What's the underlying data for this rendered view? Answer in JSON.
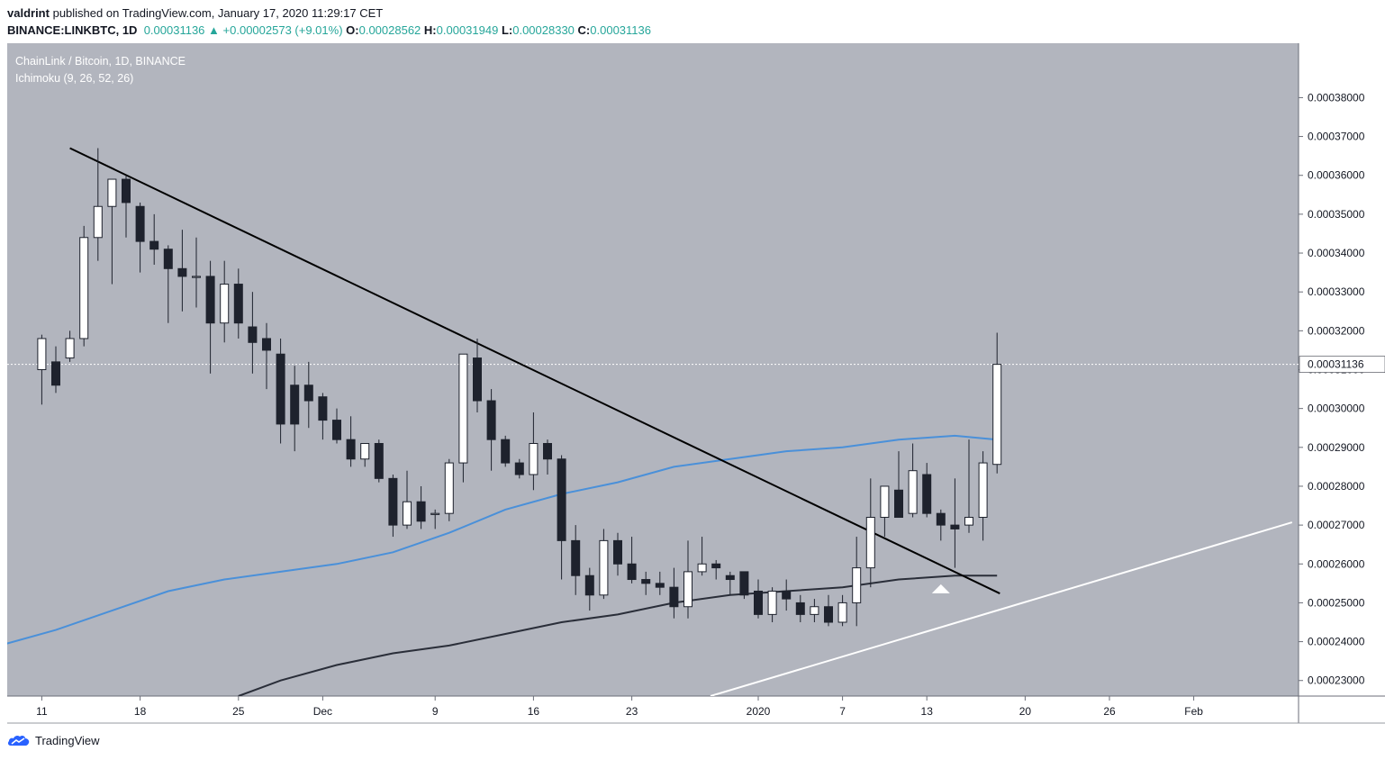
{
  "header": {
    "publisher": "valdrint",
    "published_text": "published on TradingView.com, January 17, 2020 11:29:17 CET",
    "symbol": "BINANCE:LINKBTC, 1D",
    "last": "0.00031136",
    "change": "+0.00002573 (+9.01%)",
    "o_label": "O:",
    "o_value": "0.00028562",
    "h_label": "H:",
    "h_value": "0.00031949",
    "l_label": "L:",
    "l_value": "0.00028330",
    "c_label": "C:",
    "c_value": "0.00031136"
  },
  "legend": {
    "title": "ChainLink / Bitcoin, 1D, BINANCE",
    "indicator": "Ichimoku (9, 26, 52, 26)"
  },
  "footer": {
    "brand": "TradingView"
  },
  "colors": {
    "pane_bg": "#b2b5be",
    "up_body": "#ffffff",
    "down_body": "#1e222d",
    "wick": "#1e222d",
    "blue_line": "#4a90d9",
    "dark_line": "#2a2e39",
    "trendline": "#000000",
    "support_line": "#ffffff",
    "price_tag_bg": "#ffffff"
  },
  "chart_data": {
    "type": "candlestick",
    "title": "ChainLink / Bitcoin, 1D, BINANCE",
    "ylim": [
      0.000226,
      0.000394
    ],
    "y_ticks": [
      "0.00023000",
      "0.00024000",
      "0.00025000",
      "0.00026000",
      "0.00027000",
      "0.00028000",
      "0.00029000",
      "0.00030000",
      "0.00031000",
      "0.00032000",
      "0.00033000",
      "0.00034000",
      "0.00035000",
      "0.00036000",
      "0.00037000",
      "0.00038000"
    ],
    "x_ticks": [
      {
        "label": "11",
        "day": -51
      },
      {
        "label": "18",
        "day": -44
      },
      {
        "label": "25",
        "day": -37
      },
      {
        "label": "Dec",
        "day": -31
      },
      {
        "label": "9",
        "day": -23
      },
      {
        "label": "16",
        "day": -16
      },
      {
        "label": "23",
        "day": -9
      },
      {
        "label": "2020",
        "day": 0
      },
      {
        "label": "7",
        "day": 6
      },
      {
        "label": "13",
        "day": 12
      },
      {
        "label": "20",
        "day": 19
      },
      {
        "label": "26",
        "day": 25
      },
      {
        "label": "Feb",
        "day": 31
      }
    ],
    "last_price_label": "0.00031136",
    "last_price": 0.00031136,
    "candles": [
      {
        "o": 0.00031,
        "h": 0.000319,
        "l": 0.000301,
        "c": 0.000318
      },
      {
        "o": 0.000312,
        "h": 0.000316,
        "l": 0.000304,
        "c": 0.000306
      },
      {
        "o": 0.000313,
        "h": 0.00032,
        "l": 0.000312,
        "c": 0.000318
      },
      {
        "o": 0.000318,
        "h": 0.000347,
        "l": 0.000316,
        "c": 0.000344
      },
      {
        "o": 0.000344,
        "h": 0.000367,
        "l": 0.000338,
        "c": 0.000352
      },
      {
        "o": 0.000352,
        "h": 0.000359,
        "l": 0.000332,
        "c": 0.000359
      },
      {
        "o": 0.000359,
        "h": 0.00036,
        "l": 0.000344,
        "c": 0.000353
      },
      {
        "o": 0.000352,
        "h": 0.000353,
        "l": 0.000335,
        "c": 0.000343
      },
      {
        "o": 0.000343,
        "h": 0.00035,
        "l": 0.000337,
        "c": 0.000341
      },
      {
        "o": 0.000341,
        "h": 0.000342,
        "l": 0.000322,
        "c": 0.000336
      },
      {
        "o": 0.000336,
        "h": 0.000346,
        "l": 0.000325,
        "c": 0.000334
      },
      {
        "o": 0.000334,
        "h": 0.000344,
        "l": 0.000326,
        "c": 0.000334
      },
      {
        "o": 0.000334,
        "h": 0.000338,
        "l": 0.000309,
        "c": 0.000322
      },
      {
        "o": 0.000322,
        "h": 0.000338,
        "l": 0.000317,
        "c": 0.000332
      },
      {
        "o": 0.000332,
        "h": 0.000336,
        "l": 0.000318,
        "c": 0.000322
      },
      {
        "o": 0.000321,
        "h": 0.00033,
        "l": 0.000309,
        "c": 0.000317
      },
      {
        "o": 0.000318,
        "h": 0.000322,
        "l": 0.000305,
        "c": 0.000315
      },
      {
        "o": 0.000314,
        "h": 0.000318,
        "l": 0.000291,
        "c": 0.000296
      },
      {
        "o": 0.000306,
        "h": 0.000311,
        "l": 0.000289,
        "c": 0.000296
      },
      {
        "o": 0.000306,
        "h": 0.000312,
        "l": 0.000295,
        "c": 0.000302
      },
      {
        "o": 0.000303,
        "h": 0.000304,
        "l": 0.000292,
        "c": 0.000297
      },
      {
        "o": 0.000297,
        "h": 0.0003,
        "l": 0.000291,
        "c": 0.000292
      },
      {
        "o": 0.000292,
        "h": 0.000298,
        "l": 0.000285,
        "c": 0.000287
      },
      {
        "o": 0.000287,
        "h": 0.000291,
        "l": 0.000285,
        "c": 0.000291
      },
      {
        "o": 0.000291,
        "h": 0.000292,
        "l": 0.000281,
        "c": 0.000282
      },
      {
        "o": 0.000282,
        "h": 0.000283,
        "l": 0.000267,
        "c": 0.00027
      },
      {
        "o": 0.00027,
        "h": 0.000284,
        "l": 0.000269,
        "c": 0.000276
      },
      {
        "o": 0.000276,
        "h": 0.00028,
        "l": 0.000269,
        "c": 0.000271
      },
      {
        "o": 0.000273,
        "h": 0.000274,
        "l": 0.000269,
        "c": 0.000273
      },
      {
        "o": 0.000273,
        "h": 0.000287,
        "l": 0.000271,
        "c": 0.000286
      },
      {
        "o": 0.000286,
        "h": 0.000314,
        "l": 0.000281,
        "c": 0.000314
      },
      {
        "o": 0.000313,
        "h": 0.000318,
        "l": 0.000299,
        "c": 0.000302
      },
      {
        "o": 0.000302,
        "h": 0.000305,
        "l": 0.000284,
        "c": 0.000292
      },
      {
        "o": 0.000292,
        "h": 0.000293,
        "l": 0.000285,
        "c": 0.000286
      },
      {
        "o": 0.000286,
        "h": 0.000287,
        "l": 0.000282,
        "c": 0.000283
      },
      {
        "o": 0.000283,
        "h": 0.000299,
        "l": 0.000279,
        "c": 0.000291
      },
      {
        "o": 0.000291,
        "h": 0.000292,
        "l": 0.000283,
        "c": 0.000287
      },
      {
        "o": 0.000287,
        "h": 0.000288,
        "l": 0.000256,
        "c": 0.000266
      },
      {
        "o": 0.000266,
        "h": 0.00027,
        "l": 0.000252,
        "c": 0.000257
      },
      {
        "o": 0.000257,
        "h": 0.000259,
        "l": 0.000248,
        "c": 0.000252
      },
      {
        "o": 0.000252,
        "h": 0.000269,
        "l": 0.000251,
        "c": 0.000266
      },
      {
        "o": 0.000266,
        "h": 0.000268,
        "l": 0.000257,
        "c": 0.00026
      },
      {
        "o": 0.00026,
        "h": 0.000267,
        "l": 0.000255,
        "c": 0.000256
      },
      {
        "o": 0.000256,
        "h": 0.000258,
        "l": 0.000252,
        "c": 0.000255
      },
      {
        "o": 0.000255,
        "h": 0.000258,
        "l": 0.000252,
        "c": 0.000254
      },
      {
        "o": 0.000254,
        "h": 0.000259,
        "l": 0.000246,
        "c": 0.000249
      },
      {
        "o": 0.000249,
        "h": 0.000266,
        "l": 0.000246,
        "c": 0.000258
      },
      {
        "o": 0.000258,
        "h": 0.000267,
        "l": 0.000257,
        "c": 0.00026
      },
      {
        "o": 0.00026,
        "h": 0.000261,
        "l": 0.000256,
        "c": 0.000259
      },
      {
        "o": 0.000257,
        "h": 0.000258,
        "l": 0.000252,
        "c": 0.000256
      },
      {
        "o": 0.000258,
        "h": 0.000258,
        "l": 0.000251,
        "c": 0.000252
      },
      {
        "o": 0.000253,
        "h": 0.000256,
        "l": 0.000246,
        "c": 0.000247
      },
      {
        "o": 0.000247,
        "h": 0.000254,
        "l": 0.000245,
        "c": 0.000253
      },
      {
        "o": 0.000253,
        "h": 0.000256,
        "l": 0.000248,
        "c": 0.000251
      },
      {
        "o": 0.00025,
        "h": 0.000252,
        "l": 0.000245,
        "c": 0.000247
      },
      {
        "o": 0.000247,
        "h": 0.000251,
        "l": 0.000245,
        "c": 0.000249
      },
      {
        "o": 0.000249,
        "h": 0.000252,
        "l": 0.000244,
        "c": 0.000245
      },
      {
        "o": 0.000245,
        "h": 0.000252,
        "l": 0.000244,
        "c": 0.00025
      },
      {
        "o": 0.00025,
        "h": 0.000267,
        "l": 0.000244,
        "c": 0.000259
      },
      {
        "o": 0.000259,
        "h": 0.000282,
        "l": 0.000254,
        "c": 0.000272
      },
      {
        "o": 0.000272,
        "h": 0.00028,
        "l": 0.000267,
        "c": 0.00028
      },
      {
        "o": 0.000279,
        "h": 0.000289,
        "l": 0.000272,
        "c": 0.000272
      },
      {
        "o": 0.000273,
        "h": 0.000291,
        "l": 0.000272,
        "c": 0.000284
      },
      {
        "o": 0.000283,
        "h": 0.000286,
        "l": 0.000272,
        "c": 0.000273
      },
      {
        "o": 0.000273,
        "h": 0.000274,
        "l": 0.000266,
        "c": 0.00027
      },
      {
        "o": 0.00027,
        "h": 0.000282,
        "l": 0.000259,
        "c": 0.000269
      },
      {
        "o": 0.00027,
        "h": 0.000292,
        "l": 0.000268,
        "c": 0.000272
      },
      {
        "o": 0.000272,
        "h": 0.000289,
        "l": 0.000266,
        "c": 0.000286
      },
      {
        "o": 0.00028562,
        "h": 0.00031949,
        "l": 0.0002833,
        "c": 0.00031136
      }
    ],
    "series": [
      {
        "type": "line",
        "color": "#4a90d9",
        "points": [
          [
            -58,
            0.000236
          ],
          [
            -54,
            0.000239
          ],
          [
            -50,
            0.000243
          ],
          [
            -46,
            0.000248
          ],
          [
            -42,
            0.000253
          ],
          [
            -38,
            0.000256
          ],
          [
            -34,
            0.000258
          ],
          [
            -30,
            0.00026
          ],
          [
            -26,
            0.000263
          ],
          [
            -22,
            0.000268
          ],
          [
            -18,
            0.000274
          ],
          [
            -14,
            0.000278
          ],
          [
            -10,
            0.000281
          ],
          [
            -6,
            0.000285
          ],
          [
            -2,
            0.000287
          ],
          [
            2,
            0.000289
          ],
          [
            6,
            0.00029
          ],
          [
            10,
            0.000292
          ],
          [
            14,
            0.000293
          ],
          [
            17,
            0.000292
          ]
        ]
      },
      {
        "type": "line",
        "color": "#2a2e39",
        "points": [
          [
            -37,
            0.000226
          ],
          [
            -34,
            0.00023
          ],
          [
            -30,
            0.000234
          ],
          [
            -26,
            0.000237
          ],
          [
            -22,
            0.000239
          ],
          [
            -18,
            0.000242
          ],
          [
            -14,
            0.000245
          ],
          [
            -10,
            0.000247
          ],
          [
            -6,
            0.00025
          ],
          [
            -2,
            0.000252
          ],
          [
            2,
            0.000253
          ],
          [
            6,
            0.000254
          ],
          [
            10,
            0.000256
          ],
          [
            14,
            0.000257
          ],
          [
            17,
            0.000257
          ]
        ]
      }
    ]
  }
}
